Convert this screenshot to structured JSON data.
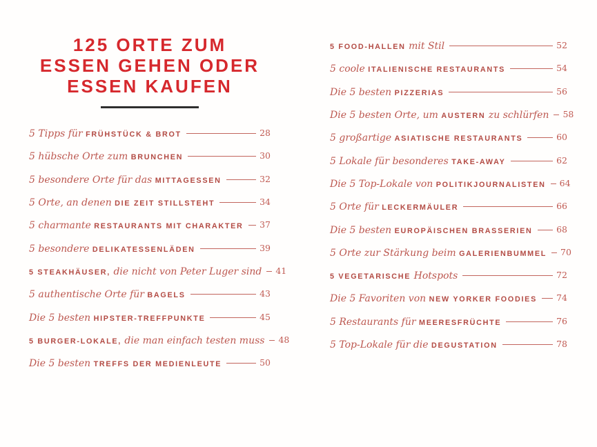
{
  "colors": {
    "title_red": "#d6282d",
    "entry_italic_red": "#bc574f",
    "entry_caps_red": "#b34b44",
    "leader_red": "#c2645c",
    "page_number_red": "#c05a52",
    "rule_dark": "#2e2e2e",
    "background": "#fffefd"
  },
  "title": {
    "lines": [
      "125 ORTE ZUM",
      "ESSEN GEHEN ODER",
      "ESSEN KAUFEN"
    ]
  },
  "toc": {
    "left": [
      {
        "segments": [
          {
            "style": "italic",
            "text": "5 Tipps für "
          },
          {
            "style": "caps",
            "text": "FRÜHSTÜCK & BROT"
          }
        ],
        "page": "28"
      },
      {
        "segments": [
          {
            "style": "italic",
            "text": "5 hübsche Orte zum "
          },
          {
            "style": "caps",
            "text": "BRUNCHEN"
          }
        ],
        "page": "30"
      },
      {
        "segments": [
          {
            "style": "italic",
            "text": "5 besondere Orte für das "
          },
          {
            "style": "caps",
            "text": "MITTAGESSEN"
          }
        ],
        "page": "32"
      },
      {
        "segments": [
          {
            "style": "italic",
            "text": "5 Orte, an denen "
          },
          {
            "style": "caps",
            "text": "DIE ZEIT STILLSTEHT"
          }
        ],
        "page": "34"
      },
      {
        "segments": [
          {
            "style": "italic",
            "text": "5 charmante "
          },
          {
            "style": "caps",
            "text": "RESTAURANTS MIT CHARAKTER"
          }
        ],
        "page": "37"
      },
      {
        "segments": [
          {
            "style": "italic",
            "text": "5 besondere "
          },
          {
            "style": "caps",
            "text": "DELIKATESSENLÄDEN"
          }
        ],
        "page": "39"
      },
      {
        "segments": [
          {
            "style": "caps",
            "text": "5 STEAKHÄUSER,"
          },
          {
            "style": "italic",
            "text": " die nicht von Peter Luger sind"
          }
        ],
        "page": "41"
      },
      {
        "segments": [
          {
            "style": "italic",
            "text": "5 authentische Orte für "
          },
          {
            "style": "caps",
            "text": "BAGELS"
          }
        ],
        "page": "43"
      },
      {
        "segments": [
          {
            "style": "italic",
            "text": "Die 5 besten "
          },
          {
            "style": "caps",
            "text": "HIPSTER-TREFFPUNKTE"
          }
        ],
        "page": "45"
      },
      {
        "segments": [
          {
            "style": "caps",
            "text": "5 BURGER-LOKALE,"
          },
          {
            "style": "italic",
            "text": " die man einfach testen muss"
          }
        ],
        "page": "48"
      },
      {
        "segments": [
          {
            "style": "italic",
            "text": "Die 5 besten "
          },
          {
            "style": "caps",
            "text": "TREFFS DER MEDIENLEUTE"
          }
        ],
        "page": "50"
      }
    ],
    "right": [
      {
        "segments": [
          {
            "style": "caps",
            "text": "5 FOOD-HALLEN"
          },
          {
            "style": "italic",
            "text": " mit Stil"
          }
        ],
        "page": "52"
      },
      {
        "segments": [
          {
            "style": "italic",
            "text": "5 coole "
          },
          {
            "style": "caps",
            "text": "ITALIENISCHE RESTAURANTS"
          }
        ],
        "page": "54"
      },
      {
        "segments": [
          {
            "style": "italic",
            "text": "Die 5 besten "
          },
          {
            "style": "caps",
            "text": "PIZZERIAS"
          }
        ],
        "page": "56"
      },
      {
        "segments": [
          {
            "style": "italic",
            "text": "Die 5 besten Orte, um "
          },
          {
            "style": "caps",
            "text": "AUSTERN"
          },
          {
            "style": "italic",
            "text": " zu schlürfen"
          }
        ],
        "page": "58"
      },
      {
        "segments": [
          {
            "style": "italic",
            "text": "5 großartige "
          },
          {
            "style": "caps",
            "text": "ASIATISCHE RESTAURANTS"
          }
        ],
        "page": "60"
      },
      {
        "segments": [
          {
            "style": "italic",
            "text": "5 Lokale für besonderes "
          },
          {
            "style": "caps",
            "text": "TAKE-AWAY"
          }
        ],
        "page": "62"
      },
      {
        "segments": [
          {
            "style": "italic",
            "text": "Die 5 Top-Lokale von "
          },
          {
            "style": "caps",
            "text": "POLITIKJOURNALISTEN"
          }
        ],
        "page": "64"
      },
      {
        "segments": [
          {
            "style": "italic",
            "text": "5 Orte für "
          },
          {
            "style": "caps",
            "text": "LECKERMÄULER"
          }
        ],
        "page": "66"
      },
      {
        "segments": [
          {
            "style": "italic",
            "text": "Die 5 besten "
          },
          {
            "style": "caps",
            "text": "EUROPÄISCHEN BRASSERIEN"
          }
        ],
        "page": "68"
      },
      {
        "segments": [
          {
            "style": "italic",
            "text": "5 Orte zur Stärkung beim "
          },
          {
            "style": "caps",
            "text": "GALERIENBUMMEL"
          }
        ],
        "page": "70"
      },
      {
        "segments": [
          {
            "style": "caps",
            "text": "5 VEGETARISCHE"
          },
          {
            "style": "italic",
            "text": " Hotspots"
          }
        ],
        "page": "72"
      },
      {
        "segments": [
          {
            "style": "italic",
            "text": "Die 5 Favoriten von "
          },
          {
            "style": "caps",
            "text": "NEW YORKER FOODIES"
          }
        ],
        "page": "74"
      },
      {
        "segments": [
          {
            "style": "italic",
            "text": "5 Restaurants für "
          },
          {
            "style": "caps",
            "text": "MEERESFRÜCHTE"
          }
        ],
        "page": "76"
      },
      {
        "segments": [
          {
            "style": "italic",
            "text": "5 Top-Lokale für die "
          },
          {
            "style": "caps",
            "text": "DEGUSTATION"
          }
        ],
        "page": "78"
      }
    ]
  }
}
